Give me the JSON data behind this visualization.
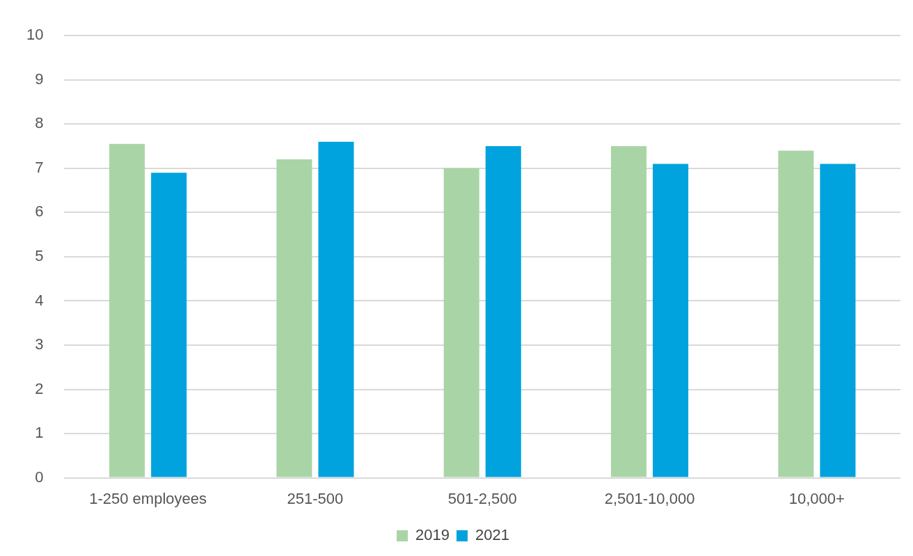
{
  "chart_data": {
    "type": "bar",
    "categories": [
      "1-250 employees",
      "251-500",
      "501-2,500",
      "2,501-10,000",
      "10,000+"
    ],
    "series": [
      {
        "name": "2019",
        "color": "#a9d5a6",
        "values": [
          7.55,
          7.2,
          7.0,
          7.5,
          7.4
        ]
      },
      {
        "name": "2021",
        "color": "#00a3dd",
        "values": [
          6.9,
          7.6,
          7.5,
          7.1,
          7.1
        ]
      }
    ],
    "ylim": [
      0,
      10
    ],
    "yticks": [
      0,
      1,
      2,
      3,
      4,
      5,
      6,
      7,
      8,
      9,
      10
    ],
    "grid": "y",
    "legend": "bottom"
  }
}
